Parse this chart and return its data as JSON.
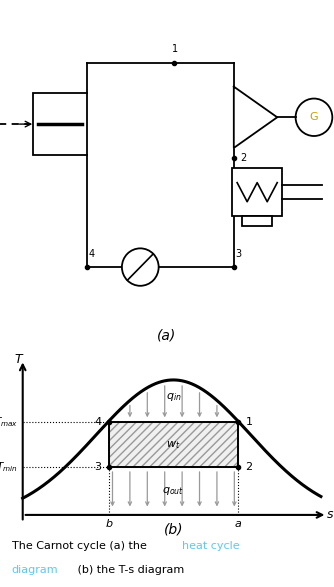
{
  "bg_color": "#ffffff",
  "line_color": "#000000",
  "blue_color": "#5bc8f5",
  "arrow_color": "#999999",
  "hatch_color": "#bbbbbb",
  "diagram_a_label": "(a)",
  "diagram_b_label": "(b)",
  "T_label": "T",
  "s_label": "s",
  "Tmax_label": "T_max",
  "Tmin_label": "T_min",
  "qin_label": "q_in",
  "qout_label": "q_out",
  "wt_label": "w_t",
  "a_label": "a",
  "b_label": "b",
  "points": [
    "1",
    "2",
    "3",
    "4"
  ],
  "s_b": 3.2,
  "s_a": 7.2,
  "T_max": 6.2,
  "T_min": 3.8,
  "s_peak": 5.2,
  "T_peak": 8.5,
  "T_base": 1.0,
  "bell_sigma": 2.4
}
